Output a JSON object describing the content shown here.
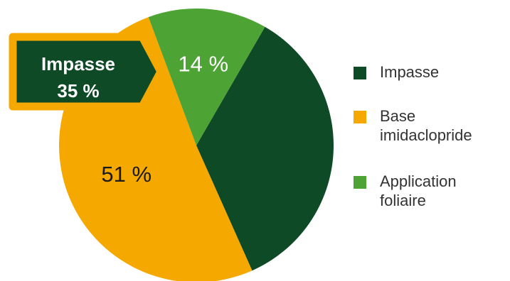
{
  "chart_data": {
    "type": "pie",
    "slices": [
      {
        "label": "Impasse",
        "value": 35,
        "color": "#0e4a26",
        "value_label": "35 %"
      },
      {
        "label": "Base imidaclopride",
        "value": 51,
        "color": "#f4a800",
        "value_label": "51 %"
      },
      {
        "label": "Application foliaire",
        "value": 14,
        "color": "#4da334",
        "value_label": "14 %"
      }
    ],
    "callout": {
      "title": "Impasse",
      "value_label": "35 %",
      "border_color": "#f4a800",
      "fill_color": "#0e4a26"
    },
    "legend": {
      "placement": "right",
      "items": [
        {
          "label": "Impasse",
          "color": "#0e4a26"
        },
        {
          "label": "Base imidaclopride",
          "color": "#f4a800"
        },
        {
          "label": "Application foliaire",
          "color": "#4da334"
        }
      ]
    }
  }
}
